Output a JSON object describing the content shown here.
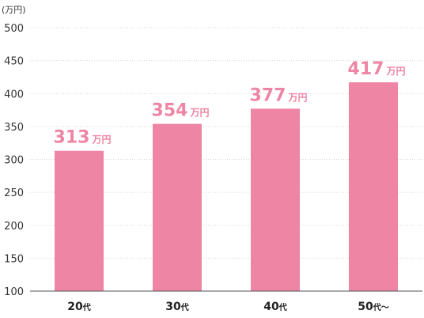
{
  "chart_data": {
    "type": "bar",
    "unit_label": "(万円)",
    "ylim": [
      100,
      500
    ],
    "yticks": [
      100,
      150,
      200,
      250,
      300,
      350,
      400,
      450,
      500
    ],
    "categories": [
      {
        "num": "20",
        "suffix": "代"
      },
      {
        "num": "30",
        "suffix": "代"
      },
      {
        "num": "40",
        "suffix": "代"
      },
      {
        "num": "50",
        "suffix": "代〜"
      }
    ],
    "values": [
      313,
      354,
      377,
      417
    ],
    "value_labels": [
      "313",
      "354",
      "377",
      "417"
    ],
    "value_unit": "万円",
    "grid": true,
    "colors": {
      "bar": "#ee85a4",
      "label": "#ee85a4"
    }
  }
}
